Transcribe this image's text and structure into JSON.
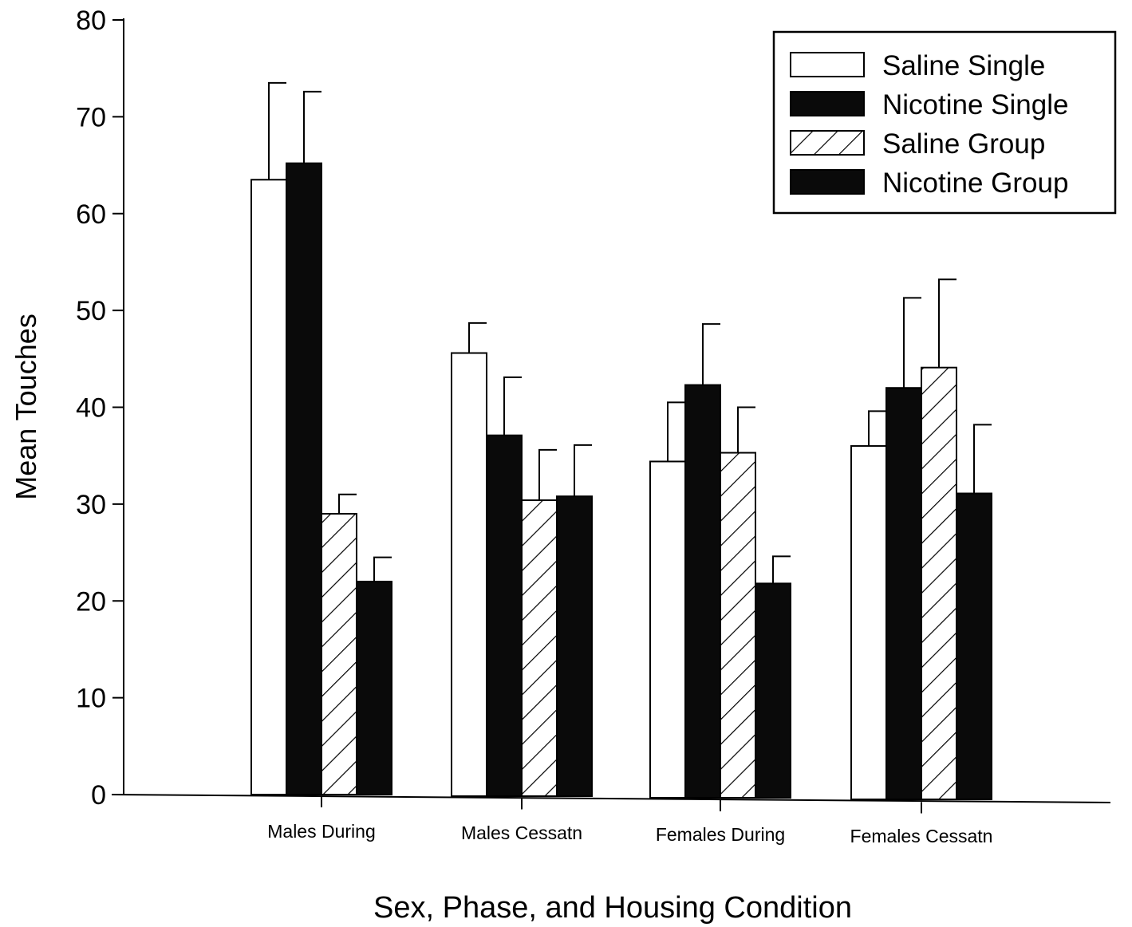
{
  "chart_data": {
    "type": "bar",
    "title": "",
    "xlabel": "Sex, Phase, and Housing Condition",
    "ylabel": "Mean Touches",
    "ylim": [
      0,
      80
    ],
    "yticks": [
      0,
      10,
      20,
      30,
      40,
      50,
      60,
      70,
      80
    ],
    "categories": [
      "Males During",
      "Males Cessatn",
      "Females During",
      "Females Cessatn"
    ],
    "series": [
      {
        "name": "Saline Single",
        "style": "white",
        "values": [
          63.5,
          45.6,
          34.4,
          36.0
        ],
        "errors": [
          10.0,
          3.1,
          6.1,
          3.6
        ]
      },
      {
        "name": "Nicotine Single",
        "style": "black",
        "values": [
          65.2,
          37.1,
          42.3,
          42.0
        ],
        "errors": [
          7.4,
          6.0,
          6.3,
          9.3
        ]
      },
      {
        "name": "Saline Group",
        "style": "hatched",
        "values": [
          29.0,
          30.4,
          35.3,
          44.1
        ],
        "errors": [
          2.0,
          5.2,
          4.7,
          9.1
        ]
      },
      {
        "name": "Nicotine Group",
        "style": "black",
        "values": [
          22.0,
          30.8,
          21.8,
          31.1
        ],
        "errors": [
          2.5,
          5.3,
          2.8,
          7.1
        ]
      }
    ],
    "legend_position": "top-right",
    "grid": false,
    "colors": {
      "bar_fill_dark": "#0a0a0a",
      "bar_fill_light": "#ffffff",
      "stroke": "#000000"
    }
  }
}
